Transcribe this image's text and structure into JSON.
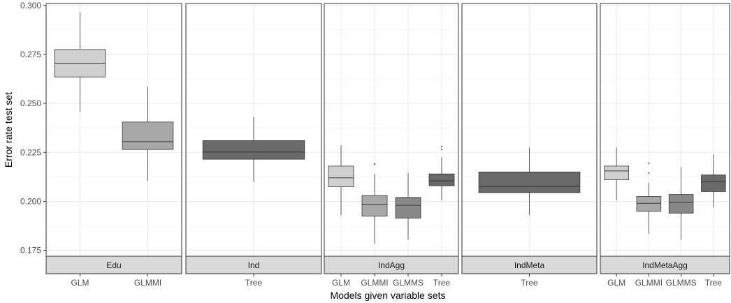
{
  "chart_data": {
    "type": "boxplot",
    "xlabel": "Models given variable sets",
    "ylabel": "Error rate test set",
    "ylim": [
      0.172,
      0.301
    ],
    "yticks": [
      0.175,
      0.2,
      0.225,
      0.25,
      0.275,
      0.3
    ],
    "ytick_labels": [
      "0.175",
      "0.200",
      "0.225",
      "0.250",
      "0.275",
      "0.300"
    ],
    "grid": true,
    "legend": "none",
    "colors": {
      "GLM": "#d0d0d0",
      "GLMMI": "#a8a8a8",
      "GLMMS": "#888888",
      "Tree": "#6a6a6a"
    },
    "facets": [
      {
        "label": "Edu",
        "categories": [
          "GLM",
          "GLMMI"
        ],
        "boxes": [
          {
            "category": "GLM",
            "min": 0.246,
            "q1": 0.2635,
            "median": 0.2705,
            "q3": 0.2775,
            "max": 0.2965,
            "outliers": []
          },
          {
            "category": "GLMMI",
            "min": 0.2105,
            "q1": 0.2265,
            "median": 0.2305,
            "q3": 0.2405,
            "max": 0.2585,
            "outliers": []
          }
        ]
      },
      {
        "label": "Ind",
        "categories": [
          "Tree"
        ],
        "boxes": [
          {
            "category": "Tree",
            "min": 0.21,
            "q1": 0.2215,
            "median": 0.2252,
            "q3": 0.231,
            "max": 0.2432,
            "outliers": []
          }
        ]
      },
      {
        "label": "IndAgg",
        "categories": [
          "GLM",
          "GLMMI",
          "GLMMS",
          "Tree"
        ],
        "boxes": [
          {
            "category": "GLM",
            "min": 0.193,
            "q1": 0.2075,
            "median": 0.212,
            "q3": 0.218,
            "max": 0.2285,
            "outliers": []
          },
          {
            "category": "GLMMI",
            "min": 0.1785,
            "q1": 0.1925,
            "median": 0.1985,
            "q3": 0.203,
            "max": 0.214,
            "outliers": [
              0.219
            ]
          },
          {
            "category": "GLMMS",
            "min": 0.1805,
            "q1": 0.1915,
            "median": 0.198,
            "q3": 0.202,
            "max": 0.2145,
            "outliers": []
          },
          {
            "category": "Tree",
            "min": 0.2005,
            "q1": 0.208,
            "median": 0.2105,
            "q3": 0.214,
            "max": 0.2225,
            "outliers": [
              0.2265,
              0.228
            ]
          }
        ]
      },
      {
        "label": "IndMeta",
        "categories": [
          "Tree"
        ],
        "boxes": [
          {
            "category": "Tree",
            "min": 0.193,
            "q1": 0.2045,
            "median": 0.2075,
            "q3": 0.215,
            "max": 0.2275,
            "outliers": []
          }
        ]
      },
      {
        "label": "IndMetaAgg",
        "categories": [
          "GLM",
          "GLMMI",
          "GLMMS",
          "Tree"
        ],
        "boxes": [
          {
            "category": "GLM",
            "min": 0.2005,
            "q1": 0.211,
            "median": 0.2155,
            "q3": 0.218,
            "max": 0.2275,
            "outliers": []
          },
          {
            "category": "GLMMI",
            "min": 0.1835,
            "q1": 0.195,
            "median": 0.199,
            "q3": 0.2025,
            "max": 0.2095,
            "outliers": [
              0.2195,
              0.2145
            ]
          },
          {
            "category": "GLMMS",
            "min": 0.1805,
            "q1": 0.194,
            "median": 0.1995,
            "q3": 0.2035,
            "max": 0.2175,
            "outliers": []
          },
          {
            "category": "Tree",
            "min": 0.197,
            "q1": 0.205,
            "median": 0.21,
            "q3": 0.2135,
            "max": 0.224,
            "outliers": []
          }
        ]
      }
    ]
  }
}
